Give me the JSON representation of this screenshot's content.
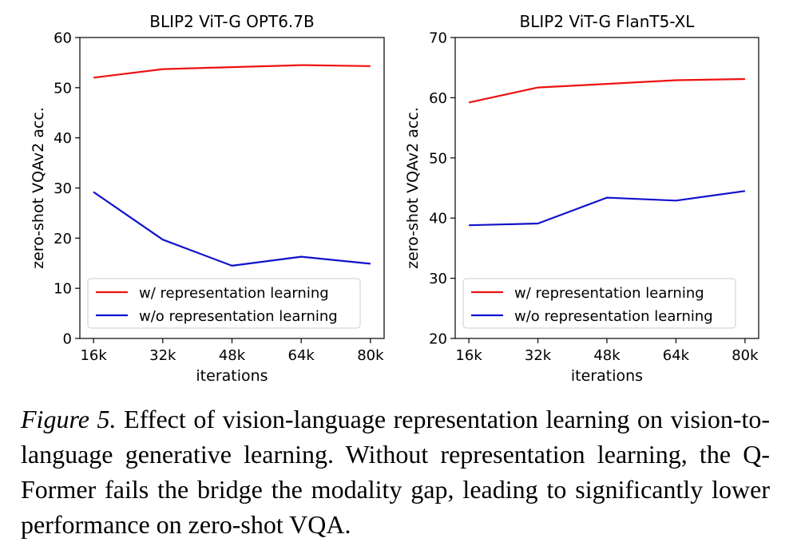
{
  "chart_data": [
    {
      "type": "line",
      "title": "BLIP2 ViT-G OPT6.7B",
      "xlabel": "iterations",
      "ylabel": "zero-shot VQAv2 acc.",
      "categories": [
        "16k",
        "32k",
        "48k",
        "64k",
        "80k"
      ],
      "ylim": [
        0,
        60
      ],
      "yticks": [
        0,
        10,
        20,
        30,
        40,
        50,
        60
      ],
      "grid": false,
      "legend_position": "lower-center",
      "series": [
        {
          "name": "w/ representation learning",
          "color": "#ee1111",
          "values": [
            52.0,
            53.7,
            54.1,
            54.5,
            54.3
          ]
        },
        {
          "name": "w/o representation learning",
          "color": "#1111cc",
          "values": [
            29.2,
            19.7,
            14.5,
            16.3,
            14.9
          ]
        }
      ]
    },
    {
      "type": "line",
      "title": "BLIP2 ViT-G FlanT5-XL",
      "xlabel": "iterations",
      "ylabel": "zero-shot VQAv2 acc.",
      "categories": [
        "16k",
        "32k",
        "48k",
        "64k",
        "80k"
      ],
      "ylim": [
        20,
        70
      ],
      "yticks": [
        20,
        30,
        40,
        50,
        60,
        70
      ],
      "grid": false,
      "legend_position": "lower-center",
      "series": [
        {
          "name": "w/ representation learning",
          "color": "#ee1111",
          "values": [
            59.2,
            61.7,
            62.3,
            62.9,
            63.1
          ]
        },
        {
          "name": "w/o representation learning",
          "color": "#1111cc",
          "values": [
            38.8,
            39.1,
            43.4,
            42.9,
            44.5
          ]
        }
      ]
    }
  ],
  "caption": {
    "label": "Figure 5.",
    "text": "Effect of vision-language representation learning on vision-to-language generative learning. Without representation learning, the Q-Former fails the bridge the modality gap, leading to significantly lower performance on zero-shot VQA."
  }
}
